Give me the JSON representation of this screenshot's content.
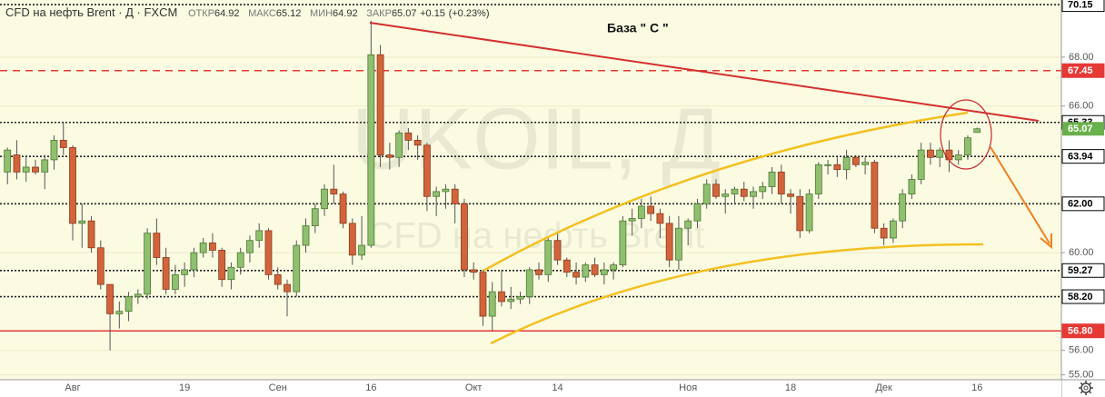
{
  "chart_data": {
    "type": "candlestick",
    "title": "CFD на нефть Brent · Д · FXCM",
    "ohlc_header": {
      "open_label": "ОТКР",
      "open": 64.92,
      "high_label": "МАКС",
      "high": 65.12,
      "low_label": "МИН",
      "low": 64.92,
      "close_label": "ЗАКР",
      "close": 65.07,
      "change": {
        "value": 0.15,
        "label": "+0.15"
      },
      "change_pct": {
        "value": 0.23,
        "label": "(+0.23%)"
      }
    },
    "watermark": [
      "UKOIL, Д",
      "CFD на нефть Brent"
    ],
    "annotation": "База  \" С \"",
    "categories": [
      null,
      null,
      null,
      null,
      null,
      null,
      null,
      "Авг",
      null,
      null,
      null,
      null,
      null,
      null,
      null,
      null,
      null,
      null,
      null,
      "19",
      null,
      null,
      null,
      null,
      null,
      null,
      null,
      null,
      null,
      "Сен",
      null,
      null,
      null,
      null,
      null,
      null,
      null,
      null,
      null,
      "16",
      null,
      null,
      null,
      null,
      null,
      null,
      null,
      null,
      null,
      null,
      "Окт",
      null,
      null,
      null,
      null,
      null,
      null,
      null,
      null,
      "14",
      null,
      null,
      null,
      null,
      null,
      null,
      null,
      null,
      null,
      null,
      null,
      null,
      null,
      "Ноя",
      null,
      null,
      null,
      null,
      null,
      null,
      null,
      null,
      null,
      null,
      "18",
      null,
      null,
      null,
      null,
      null,
      null,
      null,
      null,
      null,
      "Дек",
      null,
      null,
      null,
      null,
      null,
      null,
      null,
      null,
      null,
      "16"
    ],
    "open": [
      63.3,
      64.0,
      63.3,
      63.5,
      63.3,
      63.8,
      64.6,
      64.3,
      61.2,
      61.3,
      60.2,
      58.7,
      57.5,
      57.6,
      58.2,
      58.3,
      60.8,
      59.8,
      58.5,
      59.1,
      59.3,
      60.0,
      60.4,
      60.1,
      58.9,
      59.4,
      60.0,
      60.5,
      60.9,
      59.1,
      58.7,
      58.4,
      60.3,
      61.1,
      61.8,
      62.6,
      62.4,
      61.2,
      59.9,
      60.3,
      68.1,
      64.0,
      63.9,
      64.9,
      64.6,
      64.4,
      62.3,
      62.5,
      62.6,
      62.0,
      59.3,
      59.2,
      57.4,
      58.4,
      58.0,
      58.1,
      58.2,
      59.3,
      59.1,
      60.5,
      59.7,
      59.2,
      59.0,
      59.5,
      59.1,
      59.3,
      59.5,
      61.3,
      61.4,
      61.9,
      61.6,
      61.2,
      59.7,
      61.0,
      61.3,
      62.0,
      62.8,
      62.3,
      62.4,
      62.6,
      62.3,
      62.5,
      62.7,
      63.3,
      62.4,
      62.3,
      60.9,
      62.4,
      63.6,
      63.6,
      63.4,
      63.9,
      63.6,
      63.7,
      61.0,
      60.6,
      61.3,
      62.4,
      63.0,
      64.2,
      63.9,
      64.2,
      63.8,
      64.0,
      64.92
    ],
    "high": [
      64.3,
      64.6,
      64.0,
      63.8,
      64.0,
      64.8,
      65.3,
      64.4,
      62.0,
      61.5,
      60.5,
      58.7,
      58.0,
      58.4,
      58.5,
      61.0,
      61.4,
      60.2,
      59.5,
      59.6,
      60.2,
      60.6,
      60.8,
      60.2,
      59.6,
      60.2,
      60.7,
      61.2,
      61.0,
      59.4,
      58.9,
      60.5,
      61.4,
      62.0,
      62.8,
      63.6,
      62.5,
      61.4,
      61.5,
      69.5,
      68.5,
      64.5,
      65.0,
      65.1,
      64.8,
      64.5,
      62.7,
      62.8,
      62.8,
      62.2,
      59.6,
      59.3,
      58.8,
      59.3,
      58.6,
      58.4,
      59.4,
      59.6,
      60.6,
      60.8,
      59.8,
      59.6,
      59.6,
      59.8,
      59.6,
      59.6,
      61.5,
      61.8,
      62.2,
      62.3,
      61.8,
      61.5,
      61.5,
      61.4,
      62.2,
      63.0,
      63.0,
      62.6,
      62.7,
      62.9,
      62.7,
      62.9,
      63.5,
      63.6,
      62.6,
      62.6,
      62.6,
      63.7,
      63.8,
      63.9,
      64.2,
      64.0,
      63.9,
      63.8,
      61.2,
      61.4,
      62.6,
      63.2,
      64.5,
      64.5,
      64.3,
      64.6,
      64.2,
      64.8,
      65.12
    ],
    "low": [
      62.8,
      63.0,
      62.9,
      63.2,
      62.6,
      63.4,
      64.0,
      60.5,
      60.2,
      60.0,
      58.5,
      56.0,
      56.9,
      57.2,
      57.9,
      58.1,
      59.5,
      58.3,
      58.3,
      58.6,
      59.0,
      59.8,
      59.8,
      58.6,
      58.5,
      59.1,
      59.6,
      60.2,
      58.9,
      58.5,
      57.4,
      58.2,
      60.0,
      60.8,
      61.5,
      62.0,
      61.0,
      59.5,
      59.7,
      60.2,
      63.5,
      63.4,
      63.5,
      64.2,
      63.8,
      61.7,
      61.5,
      61.8,
      61.2,
      59.0,
      58.9,
      57.0,
      56.8,
      57.8,
      57.7,
      57.9,
      57.9,
      58.9,
      58.8,
      59.5,
      59.0,
      58.7,
      58.8,
      59.0,
      58.7,
      58.9,
      59.4,
      60.7,
      61.0,
      61.3,
      60.6,
      59.4,
      59.3,
      60.3,
      61.0,
      61.8,
      62.2,
      61.6,
      62.0,
      62.1,
      61.8,
      62.2,
      62.4,
      62.0,
      61.6,
      60.6,
      60.8,
      62.2,
      63.2,
      63.1,
      63.0,
      63.5,
      63.2,
      60.8,
      60.3,
      60.4,
      61.0,
      62.2,
      62.8,
      63.6,
      63.5,
      63.3,
      63.6,
      63.8,
      64.92
    ],
    "close": [
      64.2,
      63.3,
      63.5,
      63.3,
      63.8,
      64.6,
      64.3,
      61.2,
      61.3,
      60.2,
      58.7,
      57.5,
      57.6,
      58.2,
      58.3,
      60.8,
      59.8,
      58.5,
      59.1,
      59.3,
      60.0,
      60.4,
      60.1,
      58.9,
      59.4,
      60.0,
      60.5,
      60.9,
      59.1,
      58.7,
      58.4,
      60.3,
      61.1,
      61.8,
      62.6,
      62.4,
      61.2,
      59.9,
      60.3,
      68.1,
      64.0,
      63.9,
      64.9,
      64.6,
      64.4,
      62.3,
      62.5,
      62.6,
      62.0,
      59.3,
      59.2,
      57.4,
      58.4,
      58.0,
      58.1,
      58.2,
      59.3,
      59.1,
      60.5,
      59.7,
      59.2,
      59.0,
      59.5,
      59.1,
      59.3,
      59.5,
      61.3,
      61.4,
      61.9,
      61.6,
      61.2,
      59.7,
      61.0,
      61.3,
      62.0,
      62.8,
      62.3,
      62.4,
      62.6,
      62.3,
      62.5,
      62.7,
      63.3,
      62.4,
      62.3,
      60.9,
      62.4,
      63.6,
      63.6,
      63.4,
      63.9,
      63.6,
      63.7,
      61.0,
      60.6,
      61.3,
      62.4,
      63.0,
      64.2,
      63.9,
      64.2,
      63.8,
      64.0,
      64.7,
      65.07
    ],
    "up_color": "#8fbf6f",
    "down_color": "#d2643c",
    "wick_color": "#555555",
    "ylim": [
      54.8,
      70.34
    ],
    "yticks": [
      {
        "value": 55,
        "label": "55.00"
      },
      {
        "value": 56,
        "label": "56.00"
      },
      {
        "value": 60,
        "label": "60.00"
      },
      {
        "value": 66,
        "label": "66.00"
      },
      {
        "value": 68,
        "label": "68.00"
      }
    ],
    "grid": true,
    "price_lines": [
      {
        "value": 70.15,
        "color": "#222222",
        "style": "dotted",
        "label_bg": "#ffffff",
        "label_color": "#000000"
      },
      {
        "value": 67.45,
        "color": "#e53935",
        "style": "dashed",
        "label_bg": "#e53935",
        "label_color": "#ffffff"
      },
      {
        "value": 65.33,
        "color": "#222222",
        "style": "dotted",
        "label_bg": "#ffffff",
        "label_color": "#000000"
      },
      {
        "value": 63.94,
        "color": "#222222",
        "style": "dotted",
        "label_bg": "#ffffff",
        "label_color": "#000000"
      },
      {
        "value": 62,
        "label": "62.00",
        "color": "#222222",
        "style": "dotted",
        "label_bg": "#ffffff",
        "label_color": "#000000"
      },
      {
        "value": 59.27,
        "color": "#222222",
        "style": "dotted",
        "label_bg": "#ffffff",
        "label_color": "#000000"
      },
      {
        "value": 58.2,
        "label": "58.20",
        "color": "#222222",
        "style": "dotted",
        "label_bg": "#ffffff",
        "label_color": "#000000"
      },
      {
        "value": 56.8,
        "label": "56.80",
        "color": "#e53935",
        "style": "solid",
        "label_bg": "#e53935",
        "label_color": "#ffffff"
      }
    ],
    "last_price": {
      "value": 65.07,
      "color": "#6ab04c"
    }
  }
}
